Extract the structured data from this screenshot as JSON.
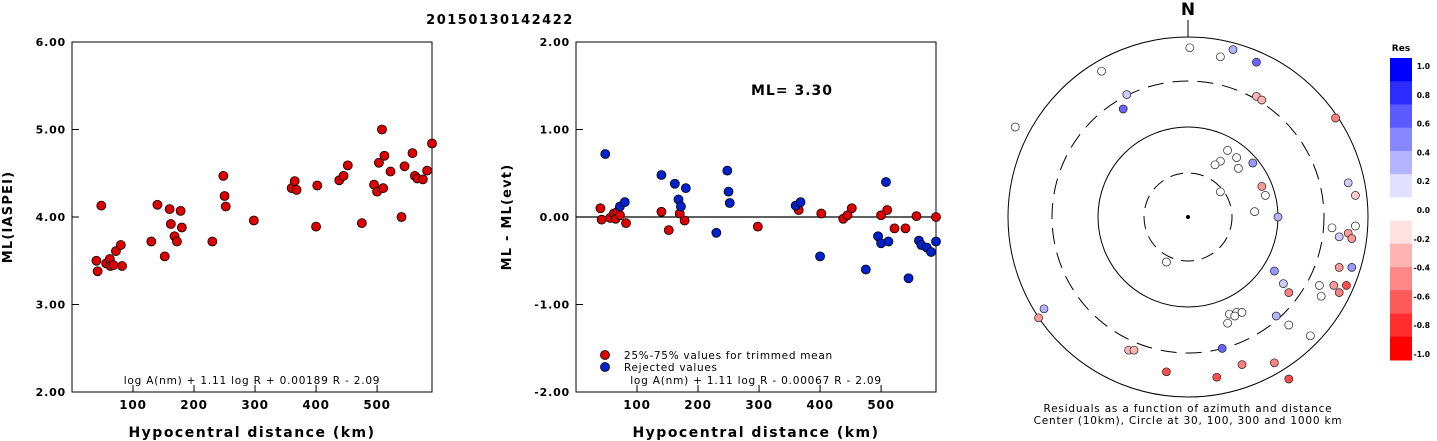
{
  "title": "20150130142422",
  "chart_data": [
    {
      "type": "scatter",
      "panel": "ml-vs-distance",
      "xlabel": "Hypocentral distance (km)",
      "ylabel": "ML(IASPEI)",
      "xlim": [
        0,
        590
      ],
      "ylim": [
        2.0,
        6.0
      ],
      "yticks": [
        "2.00",
        "3.00",
        "4.00",
        "5.00",
        "6.00"
      ],
      "xticks": [
        "100",
        "200",
        "300",
        "400",
        "500"
      ],
      "xtick_values": [
        100,
        200,
        300,
        400,
        500
      ],
      "ytick_values": [
        2,
        3,
        4,
        5,
        6
      ],
      "formula": "log A(nm) + 1.11 log R + 0.00189 R - 2.09",
      "marker_color": "#dd0000",
      "points": [
        [
          40,
          3.5
        ],
        [
          42,
          3.38
        ],
        [
          48,
          4.13
        ],
        [
          56,
          3.47
        ],
        [
          62,
          3.52
        ],
        [
          63,
          3.44
        ],
        [
          68,
          3.45
        ],
        [
          72,
          3.61
        ],
        [
          80,
          3.68
        ],
        [
          82,
          3.44
        ],
        [
          130,
          3.72
        ],
        [
          140,
          4.14
        ],
        [
          152,
          3.55
        ],
        [
          160,
          4.09
        ],
        [
          162,
          3.92
        ],
        [
          168,
          3.78
        ],
        [
          172,
          3.72
        ],
        [
          178,
          4.07
        ],
        [
          180,
          3.88
        ],
        [
          230,
          3.72
        ],
        [
          248,
          4.47
        ],
        [
          250,
          4.24
        ],
        [
          252,
          4.12
        ],
        [
          298,
          3.96
        ],
        [
          360,
          4.33
        ],
        [
          365,
          4.41
        ],
        [
          368,
          4.31
        ],
        [
          400,
          3.89
        ],
        [
          402,
          4.36
        ],
        [
          438,
          4.42
        ],
        [
          445,
          4.47
        ],
        [
          452,
          4.59
        ],
        [
          475,
          3.93
        ],
        [
          495,
          4.37
        ],
        [
          500,
          4.29
        ],
        [
          503,
          4.62
        ],
        [
          508,
          5.0
        ],
        [
          510,
          4.33
        ],
        [
          512,
          4.7
        ],
        [
          522,
          4.52
        ],
        [
          540,
          4.0
        ],
        [
          545,
          4.58
        ],
        [
          558,
          4.73
        ],
        [
          562,
          4.47
        ],
        [
          566,
          4.44
        ],
        [
          575,
          4.43
        ],
        [
          582,
          4.53
        ],
        [
          590,
          4.84
        ]
      ]
    },
    {
      "type": "scatter",
      "panel": "residual-vs-distance",
      "xlabel": "Hypocentral distance (km)",
      "ylabel": "ML - ML(evt)",
      "xlim": [
        0,
        590
      ],
      "ylim": [
        -2.0,
        2.0
      ],
      "yticks": [
        "-2.00",
        "-1.00",
        "0.00",
        "1.00",
        "2.00"
      ],
      "xticks": [
        "100",
        "200",
        "300",
        "400",
        "500"
      ],
      "xtick_values": [
        100,
        200,
        300,
        400,
        500
      ],
      "ytick_values": [
        -2,
        -1,
        0,
        1,
        2
      ],
      "annotation": "ML= 3.30",
      "formula": "log A(nm) + 1.11 log R - 0.00067 R - 2.09",
      "legend": [
        {
          "label": "25%-75% values for trimmed mean",
          "color": "#dd0000"
        },
        {
          "label": "Rejected values",
          "color": "#0022cc"
        }
      ],
      "series": [
        {
          "name": "25%-75% values for trimmed mean",
          "color": "#dd0000",
          "points": [
            [
              40,
              0.1
            ],
            [
              42,
              -0.03
            ],
            [
              56,
              -0.01
            ],
            [
              62,
              0.04
            ],
            [
              65,
              -0.02
            ],
            [
              68,
              0.06
            ],
            [
              72,
              0.02
            ],
            [
              82,
              -0.07
            ],
            [
              140,
              0.06
            ],
            [
              152,
              -0.15
            ],
            [
              170,
              0.04
            ],
            [
              178,
              -0.04
            ],
            [
              298,
              -0.11
            ],
            [
              365,
              0.08
            ],
            [
              402,
              0.04
            ],
            [
              438,
              -0.02
            ],
            [
              445,
              0.02
            ],
            [
              452,
              0.1
            ],
            [
              500,
              0.02
            ],
            [
              510,
              0.08
            ],
            [
              522,
              -0.13
            ],
            [
              540,
              -0.13
            ],
            [
              558,
              0.01
            ],
            [
              590,
              0.0
            ]
          ]
        },
        {
          "name": "Rejected values",
          "color": "#0022cc",
          "points": [
            [
              48,
              0.72
            ],
            [
              72,
              0.12
            ],
            [
              80,
              0.17
            ],
            [
              140,
              0.48
            ],
            [
              162,
              0.38
            ],
            [
              168,
              0.2
            ],
            [
              172,
              0.12
            ],
            [
              180,
              0.33
            ],
            [
              230,
              -0.18
            ],
            [
              248,
              0.53
            ],
            [
              250,
              0.29
            ],
            [
              252,
              0.16
            ],
            [
              360,
              0.13
            ],
            [
              368,
              0.17
            ],
            [
              400,
              -0.45
            ],
            [
              475,
              -0.6
            ],
            [
              495,
              -0.22
            ],
            [
              500,
              -0.3
            ],
            [
              508,
              0.4
            ],
            [
              512,
              -0.28
            ],
            [
              545,
              -0.7
            ],
            [
              562,
              -0.27
            ],
            [
              566,
              -0.32
            ],
            [
              575,
              -0.35
            ],
            [
              582,
              -0.4
            ],
            [
              590,
              -0.28
            ]
          ]
        }
      ]
    },
    {
      "type": "scatter",
      "panel": "azimuth-distance-residuals",
      "north_label": "N",
      "caption_line1": "Residuals as a function of azimuth and distance",
      "caption_line2": "Center (10km), Circle at 30, 100, 300 and 1000 km",
      "colorbar_title": "Res",
      "colorbar_ticks": [
        "1.0",
        "0.8",
        "0.6",
        "0.4",
        "0.2",
        "0.0",
        "-0.2",
        "-0.4",
        "-0.6",
        "-0.8",
        "-1.0"
      ],
      "colorbar_colors": [
        "#0000ff",
        "#2d2dff",
        "#5a5aff",
        "#8787ff",
        "#b4b4ff",
        "#e1e1ff",
        "#ffffff",
        "#ffe1e1",
        "#ffb4b4",
        "#ff8787",
        "#ff5a5a",
        "#ff2d2d",
        "#ff0000"
      ],
      "note": "points given as [east, north] in radial display units (outer ring = 1.0), residual value",
      "points": [
        [
          0.01,
          0.94,
          0.0
        ],
        [
          0.18,
          0.89,
          0.0
        ],
        [
          0.25,
          0.93,
          0.3
        ],
        [
          0.38,
          0.86,
          0.6
        ],
        [
          -0.48,
          0.81,
          0.0
        ],
        [
          -0.34,
          0.68,
          0.2
        ],
        [
          -0.36,
          0.6,
          0.6
        ],
        [
          0.38,
          0.67,
          -0.3
        ],
        [
          0.41,
          0.65,
          -0.3
        ],
        [
          0.82,
          0.55,
          -0.5
        ],
        [
          -0.96,
          0.5,
          0.0
        ],
        [
          0.22,
          0.37,
          0.0
        ],
        [
          0.18,
          0.31,
          0.0
        ],
        [
          0.27,
          0.33,
          0.0
        ],
        [
          0.36,
          0.3,
          0.4
        ],
        [
          0.15,
          0.29,
          0.0
        ],
        [
          0.28,
          0.27,
          0.0
        ],
        [
          0.89,
          0.19,
          0.2
        ],
        [
          0.41,
          0.17,
          -0.4
        ],
        [
          0.43,
          0.12,
          0.0
        ],
        [
          0.93,
          0.12,
          -0.2
        ],
        [
          0.18,
          0.14,
          0.0
        ],
        [
          0.37,
          0.03,
          0.0
        ],
        [
          0.5,
          0.0,
          0.3
        ],
        [
          0.93,
          -0.05,
          0.0
        ],
        [
          0.8,
          -0.06,
          0.0
        ],
        [
          0.84,
          -0.11,
          0.2
        ],
        [
          0.89,
          -0.09,
          -0.4
        ],
        [
          0.91,
          -0.12,
          -0.4
        ],
        [
          -0.12,
          -0.25,
          0.0
        ],
        [
          0.84,
          -0.28,
          -0.4
        ],
        [
          0.91,
          -0.28,
          0.4
        ],
        [
          0.81,
          -0.38,
          -0.4
        ],
        [
          0.48,
          -0.3,
          0.4
        ],
        [
          0.53,
          -0.37,
          0.2
        ],
        [
          0.56,
          -0.42,
          -0.5
        ],
        [
          0.73,
          -0.38,
          0.0
        ],
        [
          0.74,
          -0.44,
          0.0
        ],
        [
          0.84,
          -0.42,
          -0.5
        ],
        [
          0.88,
          -0.38,
          -0.7
        ],
        [
          -0.8,
          -0.51,
          0.3
        ],
        [
          -0.83,
          -0.56,
          -0.4
        ],
        [
          0.23,
          -0.54,
          0.0
        ],
        [
          0.27,
          -0.53,
          0.0
        ],
        [
          0.3,
          -0.53,
          0.0
        ],
        [
          0.26,
          -0.55,
          0.0
        ],
        [
          0.22,
          -0.59,
          0.0
        ],
        [
          0.49,
          -0.55,
          0.3
        ],
        [
          0.56,
          -0.6,
          0.0
        ],
        [
          0.68,
          -0.66,
          0.0
        ],
        [
          0.19,
          -0.73,
          0.6
        ],
        [
          -0.33,
          -0.74,
          -0.3
        ],
        [
          -0.3,
          -0.74,
          -0.3
        ],
        [
          0.48,
          -0.81,
          -0.5
        ],
        [
          0.3,
          -0.82,
          -0.5
        ],
        [
          -0.12,
          -0.86,
          -0.7
        ],
        [
          0.16,
          -0.89,
          -0.7
        ],
        [
          0.56,
          -0.9,
          -0.7
        ]
      ]
    }
  ]
}
